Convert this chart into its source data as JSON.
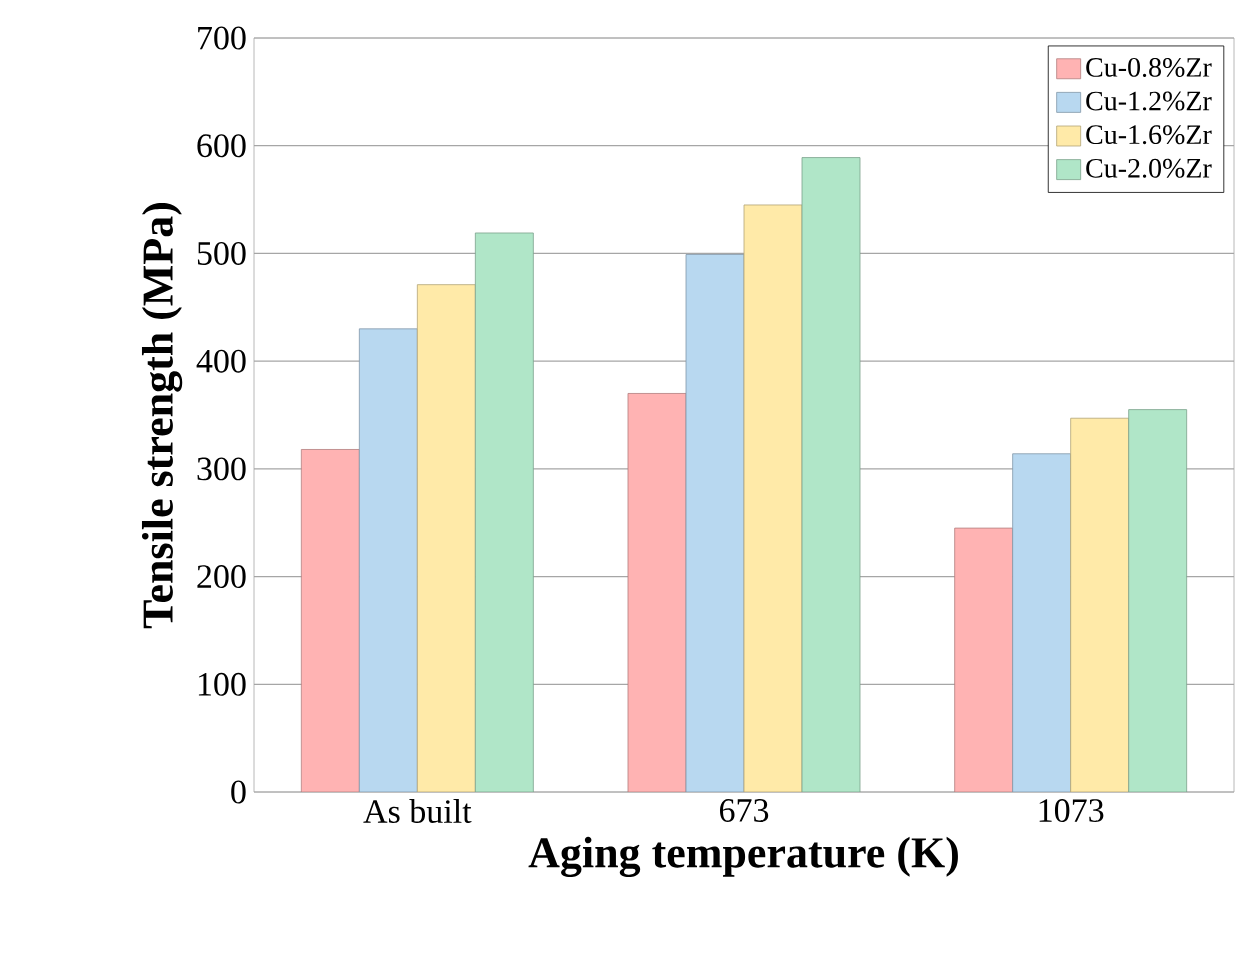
{
  "chart_data": {
    "type": "bar",
    "xlabel": "Aging temperature (K)",
    "ylabel": "Tensile strength (MPa)",
    "categories": [
      "As built",
      "673",
      "1073"
    ],
    "series": [
      {
        "name": "Cu-0.8%Zr",
        "color": "#ffb3b3",
        "values": [
          318,
          370,
          245
        ]
      },
      {
        "name": "Cu-1.2%Zr",
        "color": "#b8d8f0",
        "values": [
          430,
          499,
          314
        ]
      },
      {
        "name": "Cu-1.6%Zr",
        "color": "#ffeaa8",
        "values": [
          471,
          545,
          347
        ]
      },
      {
        "name": "Cu-2.0%Zr",
        "color": "#b0e6c8",
        "values": [
          519,
          589,
          355
        ]
      }
    ],
    "ylim": [
      0,
      700
    ],
    "yticks": [
      0,
      100,
      200,
      300,
      400,
      500,
      600,
      700
    ],
    "grid": "y",
    "legend": "top right"
  }
}
